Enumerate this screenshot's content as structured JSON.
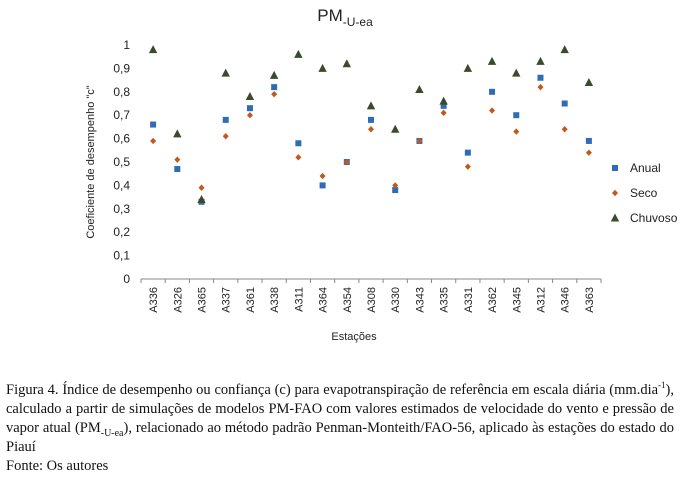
{
  "chart_data": {
    "type": "scatter",
    "title": "PM",
    "title_sub": "-U-ea",
    "xlabel": "Estações",
    "ylabel": "Coeficiente de desempenho \"c\"",
    "ylim": [
      0,
      1
    ],
    "yticks": [
      "0",
      "0,1",
      "0,2",
      "0,3",
      "0,4",
      "0,5",
      "0,6",
      "0,7",
      "0,8",
      "0,9",
      "1"
    ],
    "ytick_values": [
      0,
      0.1,
      0.2,
      0.3,
      0.4,
      0.5,
      0.6,
      0.7,
      0.8,
      0.9,
      1.0
    ],
    "grid": false,
    "legend_position": "right",
    "categories": [
      "A336",
      "A326",
      "A365",
      "A337",
      "A361",
      "A338",
      "A311",
      "A364",
      "A354",
      "A308",
      "A330",
      "A343",
      "A335",
      "A331",
      "A362",
      "A345",
      "A312",
      "A346",
      "A363"
    ],
    "series": [
      {
        "name": "Anual",
        "marker": "square",
        "color": "#2e6db4",
        "values": [
          0.66,
          0.47,
          0.33,
          0.68,
          0.73,
          0.82,
          0.58,
          0.4,
          0.5,
          0.68,
          0.38,
          0.59,
          0.74,
          0.54,
          0.8,
          0.7,
          0.86,
          0.75,
          0.59
        ]
      },
      {
        "name": "Seco",
        "marker": "diamond",
        "color": "#c0591f",
        "values": [
          0.59,
          0.51,
          0.39,
          0.61,
          0.7,
          0.79,
          0.52,
          0.44,
          0.5,
          0.64,
          0.4,
          0.59,
          0.71,
          0.48,
          0.72,
          0.63,
          0.82,
          0.64,
          0.54
        ]
      },
      {
        "name": "Chuvoso",
        "marker": "triangle",
        "color": "#3b4a2a",
        "values": [
          0.98,
          0.62,
          0.34,
          0.88,
          0.78,
          0.87,
          0.96,
          0.9,
          0.92,
          0.74,
          0.64,
          0.81,
          0.76,
          0.9,
          0.93,
          0.88,
          0.93,
          0.98,
          0.84
        ]
      }
    ]
  },
  "caption": {
    "part1": "Figura 4. Índice de desempenho ou confiança (c) para evapotranspiração de referência em escala diária (mm.dia",
    "sup": "-1",
    "part2": "), calculado a partir de simulações de modelos PM-FAO com valores estimados de velocidade do vento e pressão de vapor atual (PM",
    "sub": "-U-ea",
    "part3": "), relacionado ao método padrão Penman-Monteith/FAO-56, aplicado às estações do estado do Piauí",
    "source": "Fonte: Os autores"
  }
}
